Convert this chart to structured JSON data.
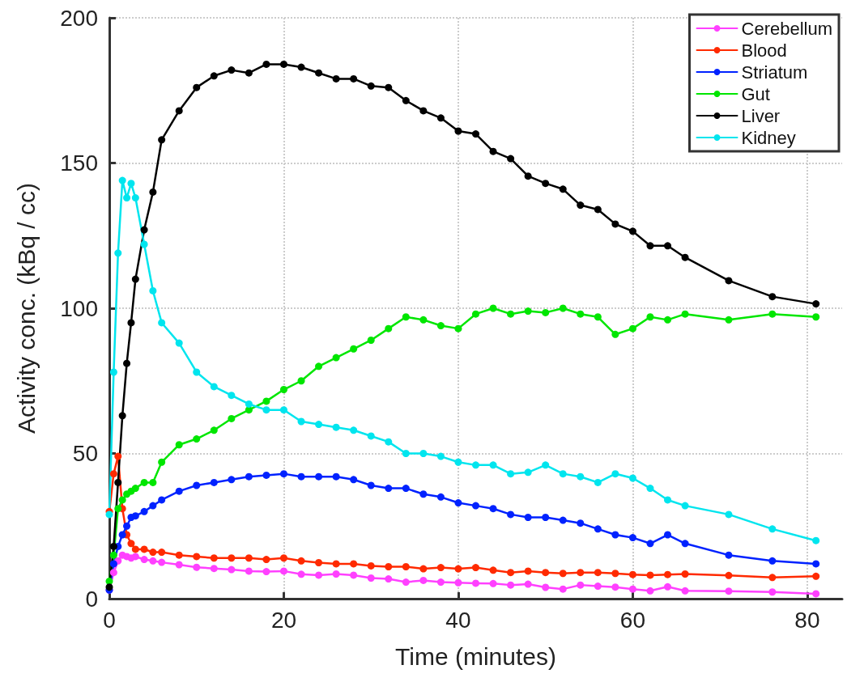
{
  "chart_data": {
    "type": "line",
    "xlabel": "Time (minutes)",
    "ylabel": "Activity conc. (kBq / cc)",
    "x": [
      0,
      0.5,
      1,
      1.5,
      2,
      2.5,
      3,
      4,
      5,
      6,
      8,
      10,
      12,
      14,
      16,
      18,
      20,
      22,
      24,
      26,
      28,
      30,
      32,
      34,
      36,
      38,
      40,
      42,
      44,
      46,
      48,
      50,
      52,
      54,
      56,
      58,
      60,
      62,
      64,
      66,
      71,
      76,
      81
    ],
    "xlim": [
      0,
      84
    ],
    "xticks": [
      0,
      20,
      40,
      60,
      80
    ],
    "ylim": [
      0,
      200
    ],
    "yticks": [
      0,
      50,
      100,
      150,
      200
    ],
    "grid": true,
    "legend": "top right",
    "marker": "circle",
    "line_style": "solid",
    "series": [
      {
        "name": "Cerebellum",
        "color": "#ff40ff",
        "values": [
          3,
          9,
          13,
          15,
          14.5,
          14,
          14.5,
          13.5,
          13,
          12.5,
          11.7,
          10.8,
          10.4,
          10,
          9.5,
          9.3,
          9.5,
          8.4,
          8.1,
          8.5,
          8.1,
          7.1,
          6.8,
          5.7,
          6.3,
          5.7,
          5.5,
          5.3,
          5.2,
          4.7,
          5,
          3.9,
          3.3,
          4.7,
          4.3,
          4,
          3.3,
          2.7,
          4.1,
          2.7,
          2.6,
          2.3,
          1.7
        ]
      },
      {
        "name": "Blood",
        "color": "#ff2a00",
        "values": [
          30,
          43,
          49,
          31,
          22,
          19,
          17,
          17,
          16,
          16,
          15,
          14.5,
          14,
          14,
          14,
          13.5,
          14,
          13,
          12.4,
          12,
          12,
          11.3,
          11,
          11,
          10.3,
          10.7,
          10.3,
          10.7,
          9.8,
          9,
          9.5,
          9,
          8.7,
          9,
          9,
          8.7,
          8.3,
          8.1,
          8.3,
          8.5,
          8,
          7.3,
          7.7
        ]
      },
      {
        "name": "Striatum",
        "color": "#0022ff",
        "values": [
          3,
          12,
          18,
          22,
          25,
          28,
          28.5,
          30,
          32,
          34,
          37,
          39,
          40,
          41,
          42,
          42.5,
          43,
          42,
          42,
          42,
          41,
          39,
          38,
          38,
          36,
          35,
          33,
          32,
          31,
          29,
          28,
          28,
          27,
          26,
          24,
          22,
          21,
          19,
          22,
          19,
          15,
          13,
          12
        ]
      },
      {
        "name": "Gut",
        "color": "#00e600",
        "values": [
          6,
          15,
          31,
          34,
          36,
          37,
          38,
          40,
          40,
          47,
          53,
          55,
          58,
          62,
          65,
          68,
          72,
          75,
          80,
          83,
          86,
          89,
          93,
          97,
          96,
          94,
          93,
          98,
          100,
          98,
          99,
          98.5,
          100,
          98,
          97,
          91,
          93,
          97,
          96,
          98,
          96,
          98,
          97
        ]
      },
      {
        "name": "Liver",
        "color": "#000000",
        "values": [
          4,
          18,
          40,
          63,
          81,
          95,
          110,
          127,
          140,
          158,
          168,
          176,
          180,
          182,
          181,
          184,
          184,
          183,
          181,
          179,
          179,
          176.5,
          176,
          171.5,
          168,
          165.5,
          161,
          160,
          154,
          151.5,
          145.5,
          143,
          141,
          135.5,
          134,
          129,
          126.5,
          121.5,
          121.5,
          117.5,
          109.5,
          104,
          101.5
        ]
      },
      {
        "name": "Kidney",
        "color": "#00e5ee",
        "values": [
          29,
          78,
          119,
          144,
          138,
          143,
          138,
          122,
          106,
          95,
          88,
          78,
          73,
          70,
          67,
          65,
          65,
          61,
          60,
          59,
          58,
          56,
          54,
          50,
          50,
          49,
          47,
          46,
          46,
          43,
          43.5,
          46,
          43,
          42,
          40,
          43,
          41.5,
          38,
          34,
          32,
          29,
          24,
          20
        ]
      }
    ]
  }
}
